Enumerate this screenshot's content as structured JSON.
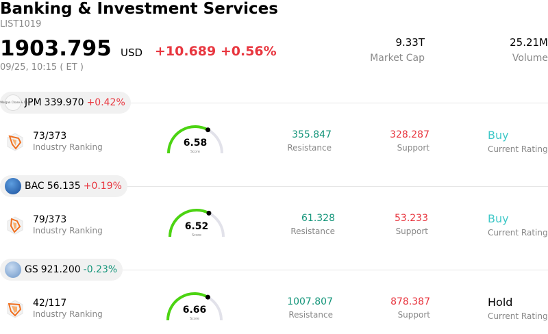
{
  "header": {
    "title": "Banking & Investment Services",
    "subtitle": "LIST1019",
    "price": "1903.795",
    "currency": "USD",
    "change": "+10.689 +0.56%",
    "time": "09/25, 10:15  ( ET )",
    "market_cap_value": "9.33T",
    "market_cap_label": "Market Cap",
    "volume_value": "25.21M",
    "volume_label": "Volume"
  },
  "colors": {
    "up": "#e8363f",
    "down": "#14957a",
    "gauge_fill": "#4cd412",
    "gauge_track": "#e2e2ea",
    "buy": "#3fc8c8"
  },
  "stocks": [
    {
      "symbol": "JPM",
      "price": "339.970",
      "change": "+0.42%",
      "direction": "up",
      "logo_text": "JPMorgan Chase & Co.",
      "rank": "73/373",
      "rank_label": "Industry Ranking",
      "score": "6.58",
      "score_label": "Score",
      "score_value": 6.58,
      "resistance": "355.847",
      "resistance_label": "Resistance",
      "support": "328.287",
      "support_label": "Support",
      "rating": "Buy",
      "rating_label": "Current Rating"
    },
    {
      "symbol": "BAC",
      "price": "56.135",
      "change": "+0.19%",
      "direction": "up",
      "logo_text": "",
      "rank": "79/373",
      "rank_label": "Industry Ranking",
      "score": "6.52",
      "score_label": "Score",
      "score_value": 6.52,
      "resistance": "61.328",
      "resistance_label": "Resistance",
      "support": "53.233",
      "support_label": "Support",
      "rating": "Buy",
      "rating_label": "Current Rating"
    },
    {
      "symbol": "GS",
      "price": "921.200",
      "change": "-0.23%",
      "direction": "down",
      "logo_text": "Goldman Sachs",
      "rank": "42/117",
      "rank_label": "Industry Ranking",
      "score": "6.66",
      "score_label": "Score",
      "score_value": 6.66,
      "resistance": "1007.807",
      "resistance_label": "Resistance",
      "support": "878.387",
      "support_label": "Support",
      "rating": "Hold",
      "rating_label": "Current Rating"
    }
  ]
}
